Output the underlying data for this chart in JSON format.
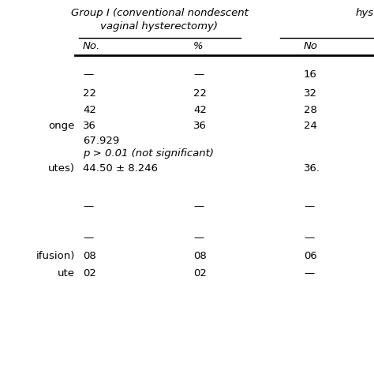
{
  "title_group1_line1": "Group I (conventional nondescent",
  "title_group1_line2": "vaginal hysterectomy)",
  "title_group2_partial": "hys",
  "col_headers": [
    "No.",
    "%",
    "No"
  ],
  "rows": [
    {
      "left_label": "",
      "c1": "—",
      "c2": "—",
      "c3": "16"
    },
    {
      "left_label": "",
      "c1": "22",
      "c2": "22",
      "c3": "32"
    },
    {
      "left_label": "",
      "c1": "42",
      "c2": "42",
      "c3": "28"
    },
    {
      "left_label": "onge",
      "c1": "36",
      "c2": "36",
      "c3": "24"
    },
    {
      "left_label": "",
      "c1": "67.929",
      "c2": "",
      "c3": ""
    },
    {
      "left_label": "",
      "c1": "p > 0.01 (not significant)",
      "c2": "",
      "c3": ""
    },
    {
      "left_label": "utes)",
      "c1": "44.50 ± 8.246",
      "c2": "",
      "c3": "36."
    },
    {
      "left_label": "",
      "c1": "",
      "c2": "",
      "c3": ""
    },
    {
      "left_label": "",
      "c1": "—",
      "c2": "—",
      "c3": "—"
    },
    {
      "left_label": "",
      "c1": "",
      "c2": "",
      "c3": ""
    },
    {
      "left_label": "",
      "c1": "—",
      "c2": "—",
      "c3": "—"
    },
    {
      "left_label": "ifusion)",
      "c1": "08",
      "c2": "08",
      "c3": "06"
    },
    {
      "left_label": "ute",
      "c1": "02",
      "c2": "02",
      "c3": "—"
    }
  ],
  "bg_color": "#ffffff",
  "text_color": "#000000",
  "line_color": "#000000",
  "font_size": 9.5,
  "header_font_size": 9.5
}
